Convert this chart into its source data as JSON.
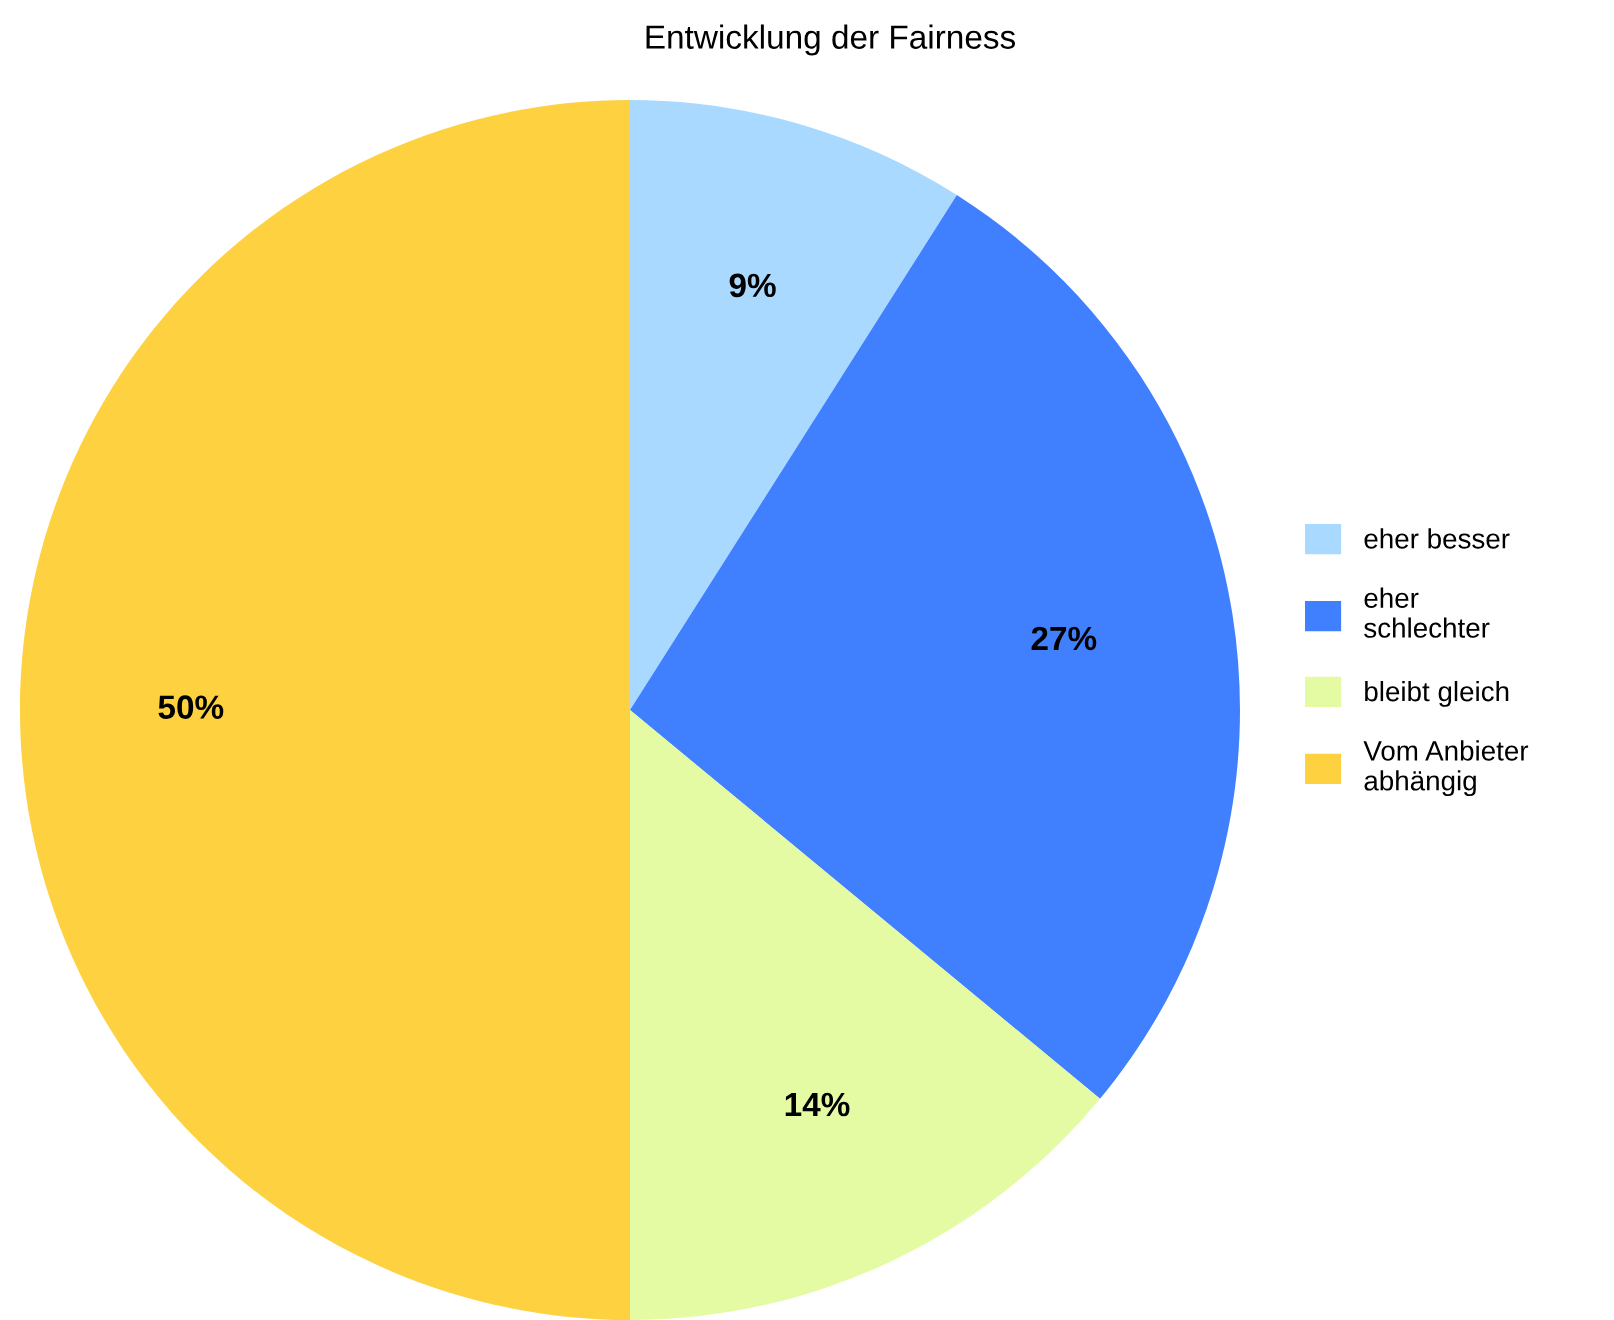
{
  "chart_data": {
    "type": "pie",
    "title": "Entwicklung der Fairness",
    "categories": [
      "eher besser",
      "eher\nschlechter",
      "bleibt gleich",
      "Vom Anbieter\nabhängig"
    ],
    "values": [
      9,
      27,
      14,
      50
    ],
    "colors": [
      "#a9d9ff",
      "#4080ff",
      "#e5fba3",
      "#fdd13f"
    ],
    "value_labels": [
      "9%",
      "27%",
      "14%",
      "50%"
    ],
    "legend": "right"
  }
}
